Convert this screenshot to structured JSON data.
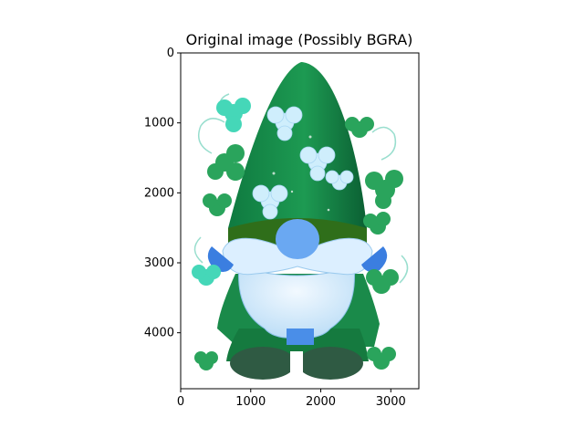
{
  "chart_data": {
    "type": "image",
    "title": "Original image (Possibly BGRA)",
    "xlabel": "",
    "ylabel": "",
    "xlim": [
      0,
      3400
    ],
    "ylim": [
      4800,
      0
    ],
    "xticks": [
      0,
      1000,
      2000,
      3000
    ],
    "yticks": [
      0,
      1000,
      2000,
      3000,
      4000
    ],
    "grid": false,
    "image_content": "gnome illustration with tall green hat, light-blue beard and blue nose, surrounded by green and teal shamrocks and clovers",
    "colors": {
      "hat_dark": "#0d6b3a",
      "hat_mid": "#1a8a4a",
      "hat_light": "#2fae6a",
      "beard": "#dcefff",
      "beard_shadow": "#a9d2f2",
      "nose": "#6aa8f2",
      "mustache_blue": "#3b7ee0",
      "boots": "#2f5a43",
      "clover_green": "#2aa45c",
      "clover_teal": "#45d7b8",
      "clover_light": "#cfeefc"
    }
  }
}
